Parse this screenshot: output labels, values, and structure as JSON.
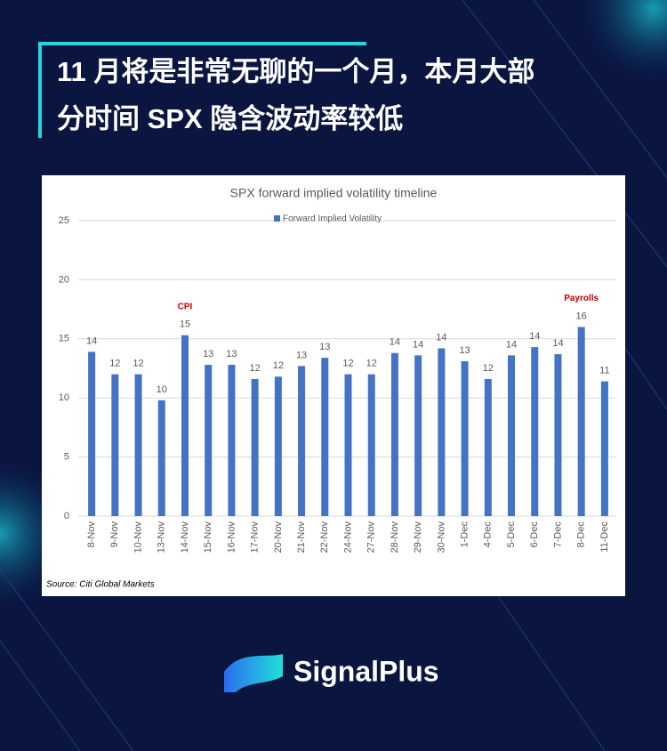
{
  "header": {
    "title_lines": [
      "11 月将是非常无聊的一个月，本月大部",
      "分时间 SPX 隐含波动率较低"
    ]
  },
  "brand": "SignalPlus",
  "chart_data": {
    "type": "bar",
    "title": "SPX forward implied volatility timeline",
    "categories": [
      "8-Nov",
      "9-Nov",
      "10-Nov",
      "13-Nov",
      "14-Nov",
      "15-Nov",
      "16-Nov",
      "17-Nov",
      "20-Nov",
      "21-Nov",
      "22-Nov",
      "24-Nov",
      "27-Nov",
      "28-Nov",
      "29-Nov",
      "30-Nov",
      "1-Dec",
      "4-Dec",
      "5-Dec",
      "6-Dec",
      "7-Dec",
      "8-Dec",
      "11-Dec"
    ],
    "series": [
      {
        "name": "Forward Implied Volatility",
        "color": "#4472c4",
        "values": [
          13.9,
          12.0,
          12.0,
          9.8,
          15.3,
          12.8,
          12.8,
          11.6,
          11.8,
          12.7,
          13.4,
          12.0,
          12.0,
          13.8,
          13.6,
          14.2,
          13.1,
          11.6,
          13.6,
          14.3,
          13.7,
          16.0,
          11.4
        ],
        "value_labels": [
          "14",
          "12",
          "12",
          "10",
          "15",
          "13",
          "13",
          "12",
          "12",
          "13",
          "13",
          "12",
          "12",
          "14",
          "14",
          "14",
          "13",
          "12",
          "14",
          "14",
          "14",
          "16",
          "11"
        ]
      }
    ],
    "ylim": [
      0,
      25
    ],
    "yticks": [
      0,
      5,
      10,
      15,
      20,
      25
    ],
    "grid": true,
    "legend": "top",
    "annotations": [
      {
        "text": "CPI",
        "category": "14-Nov",
        "color": "#c00000"
      },
      {
        "text": "Payrolls",
        "category": "8-Dec",
        "color": "#c00000"
      }
    ],
    "source": "Source: Citi Global Markets"
  }
}
